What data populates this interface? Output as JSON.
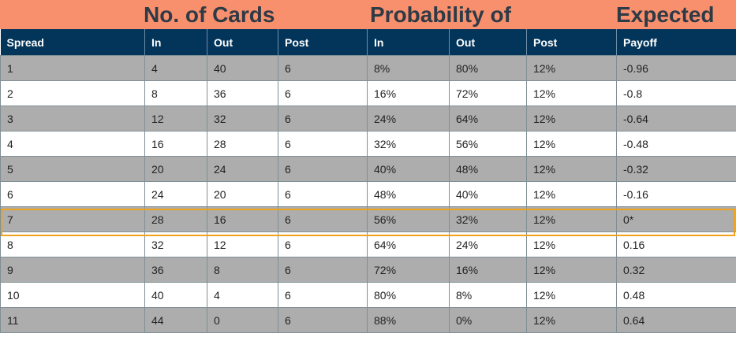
{
  "title_groups": {
    "cards": "No. of Cards",
    "probability": "Probability of",
    "expected": "Expected"
  },
  "headers": [
    "Spread",
    "In",
    "Out",
    "Post",
    "In",
    "Out",
    "Post",
    "Payoff"
  ],
  "rows": [
    [
      "1",
      "4",
      "40",
      "6",
      "8%",
      "80%",
      "12%",
      "-0.96"
    ],
    [
      "2",
      "8",
      "36",
      "6",
      "16%",
      "72%",
      "12%",
      "-0.8"
    ],
    [
      "3",
      "12",
      "32",
      "6",
      "24%",
      "64%",
      "12%",
      "-0.64"
    ],
    [
      "4",
      "16",
      "28",
      "6",
      "32%",
      "56%",
      "12%",
      "-0.48"
    ],
    [
      "5",
      "20",
      "24",
      "6",
      "40%",
      "48%",
      "12%",
      "-0.32"
    ],
    [
      "6",
      "24",
      "20",
      "6",
      "48%",
      "40%",
      "12%",
      "-0.16"
    ],
    [
      "7",
      "28",
      "16",
      "6",
      "56%",
      "32%",
      "12%",
      "0*"
    ],
    [
      "8",
      "32",
      "12",
      "6",
      "64%",
      "24%",
      "12%",
      "0.16"
    ],
    [
      "9",
      "36",
      "8",
      "6",
      "72%",
      "16%",
      "12%",
      "0.32"
    ],
    [
      "10",
      "40",
      "4",
      "6",
      "80%",
      "8%",
      "12%",
      "0.48"
    ],
    [
      "11",
      "44",
      "0",
      "6",
      "88%",
      "0%",
      "12%",
      "0.64"
    ]
  ],
  "highlighted_row": 7,
  "colors": {
    "banner": "#f9906d",
    "header": "#03355a",
    "row_gray": "#adadad",
    "row_white": "#ffffff",
    "highlight": "#f0a21a"
  }
}
